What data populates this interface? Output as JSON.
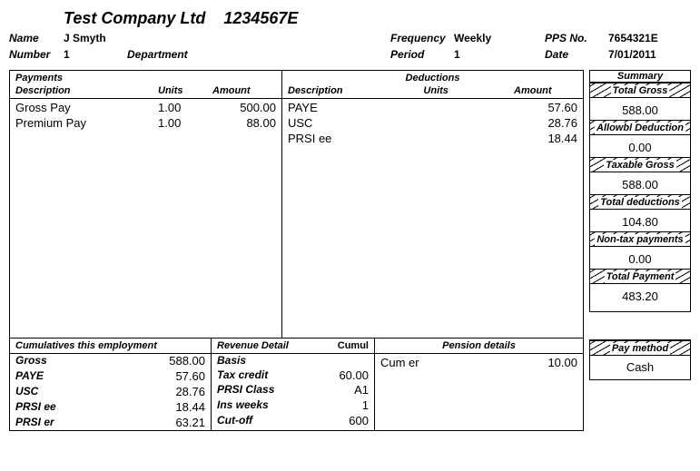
{
  "company": {
    "name": "Test Company Ltd",
    "code": "1234567E"
  },
  "header": {
    "name_label": "Name",
    "name": "J Smyth",
    "number_label": "Number",
    "number": "1",
    "department_label": "Department",
    "department": "",
    "frequency_label": "Frequency",
    "frequency": "Weekly",
    "pps_label": "PPS No.",
    "pps": "7654321E",
    "period_label": "Period",
    "period": "1",
    "date_label": "Date",
    "date": "7/01/2011"
  },
  "payments": {
    "heading": "Payments",
    "col_desc": "Description",
    "col_units": "Units",
    "col_amount": "Amount",
    "rows": [
      {
        "desc": "Gross Pay",
        "units": "1.00",
        "amount": "500.00"
      },
      {
        "desc": "Premium Pay",
        "units": "1.00",
        "amount": "88.00"
      }
    ]
  },
  "deductions": {
    "heading": "Deductions",
    "col_desc": "Description",
    "col_units": "Units",
    "col_amount": "Amount",
    "rows": [
      {
        "desc": "PAYE",
        "units": "",
        "amount": "57.60"
      },
      {
        "desc": "USC",
        "units": "",
        "amount": "28.76"
      },
      {
        "desc": "PRSI ee",
        "units": "",
        "amount": "18.44"
      }
    ]
  },
  "cumulatives": {
    "heading": "Cumulatives this employment",
    "rows": [
      {
        "k": "Gross",
        "v": "588.00"
      },
      {
        "k": "PAYE",
        "v": "57.60"
      },
      {
        "k": "USC",
        "v": "28.76"
      },
      {
        "k": "PRSI ee",
        "v": "18.44"
      },
      {
        "k": "PRSI er",
        "v": "63.21"
      }
    ]
  },
  "revenue": {
    "heading": "Revenue Detail",
    "cumul_label": "Cumul",
    "rows": [
      {
        "k": "Basis",
        "v": ""
      },
      {
        "k": "Tax credit",
        "v": "60.00"
      },
      {
        "k": "PRSI Class",
        "v": "A1"
      },
      {
        "k": "Ins weeks",
        "v": "1"
      },
      {
        "k": "Cut-off",
        "v": "600"
      }
    ]
  },
  "pension": {
    "heading": "Pension details",
    "rows": [
      {
        "k": "Cum er",
        "v": "10.00"
      }
    ]
  },
  "summary": {
    "heading": "Summary",
    "items": [
      {
        "label": "Total Gross",
        "value": "588.00"
      },
      {
        "label": "Allowbl Deduction",
        "value": "0.00"
      },
      {
        "label": "Taxable Gross",
        "value": "588.00"
      },
      {
        "label": "Total deductions",
        "value": "104.80"
      },
      {
        "label": "Non-tax payments",
        "value": "0.00"
      },
      {
        "label": "Total Payment",
        "value": "483.20"
      }
    ],
    "paymethod_label": "Pay method",
    "paymethod_value": "Cash"
  }
}
